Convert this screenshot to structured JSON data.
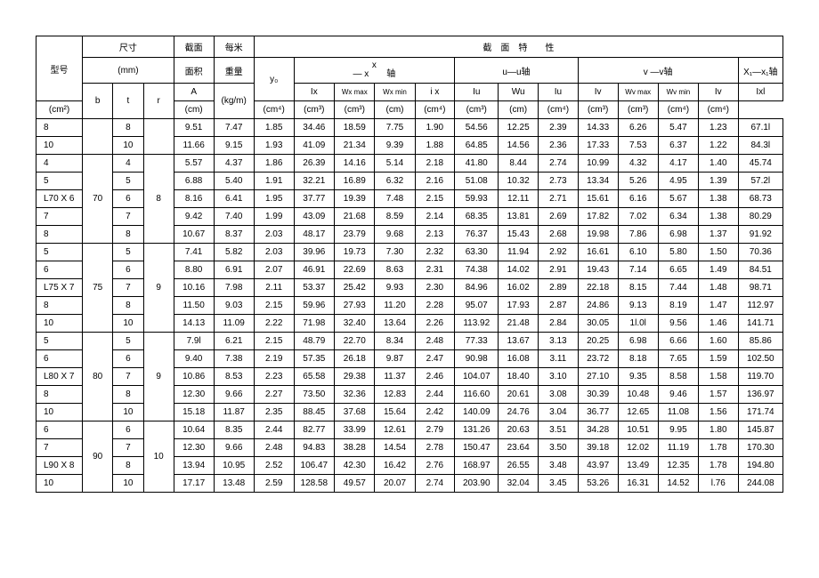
{
  "header": {
    "model": "型号",
    "dim": "尺寸",
    "dim_unit": "(mm)",
    "b": "b",
    "t": "t",
    "r": "r",
    "area": "截面",
    "area2": "面积",
    "A": "A",
    "A_unit": "(cm²)",
    "wpm": "每米",
    "wpm2": "重量",
    "wpm_unit": "(kg/m)",
    "props": "截　面　特　　性",
    "y0": "y₀",
    "y0_unit": "(cm)",
    "x_axis_top": "x",
    "x_axis_bot": "— x　　轴",
    "Ix": "Ix",
    "Ix_unit": "(cm⁴)",
    "Wxmax": "Wx max",
    "Wxmax_unit": "(cm³)",
    "Wxmin": "Wx min",
    "Wxmin_unit": "(cm³)",
    "ix": "i x",
    "ix_unit": "(cm)",
    "u_axis": "u—u轴",
    "Iu": "Iu",
    "Iu_unit": "(cm⁴)",
    "Wu": "Wu",
    "Wu_unit": "(cm³)",
    "iu": "Iu",
    "iu_unit": "(cm)",
    "v_axis": "v —v轴",
    "Iv": "Iv",
    "Iv_unit": "(cm⁴)",
    "Wvmax": "Wv max",
    "Wvmax_unit": "(cm³)",
    "Wvmin": "Wv min",
    "Wvmin_unit": "(cm³)",
    "iv": "Iv",
    "iv_unit": "(cm⁴)",
    "x1_axis": "X₁—x₁轴",
    "Ixl": "Ixl",
    "Ixl_unit": "(cm⁴)"
  },
  "groups": [
    {
      "b": "",
      "r": "",
      "rows": [
        {
          "model": "8",
          "t": "8",
          "A": "9.51",
          "kg": "7.47",
          "y0": "1.85",
          "Ix": "34.46",
          "Wxmax": "18.59",
          "Wxmin": "7.75",
          "ix": "1.90",
          "Iu": "54.56",
          "Wu": "12.25",
          "iu": "2.39",
          "Iv": "14.33",
          "Wvmax": "6.26",
          "Wvmin": "5.47",
          "iv": "1.23",
          "Ixl": "67.1l"
        },
        {
          "model": "10",
          "t": "10",
          "A": "11.66",
          "kg": "9.15",
          "y0": "1.93",
          "Ix": "41.09",
          "Wxmax": "21.34",
          "Wxmin": "9.39",
          "ix": "1.88",
          "Iu": "64.85",
          "Wu": "14.56",
          "iu": "2.36",
          "Iv": "17.33",
          "Wvmax": "7.53",
          "Wvmin": "6.37",
          "iv": "1.22",
          "Ixl": "84.3l"
        }
      ]
    },
    {
      "b": "70",
      "r": "8",
      "rows": [
        {
          "model": "4",
          "t": "4",
          "A": "5.57",
          "kg": "4.37",
          "y0": "1.86",
          "Ix": "26.39",
          "Wxmax": "14.16",
          "Wxmin": "5.14",
          "ix": "2.18",
          "Iu": "41.80",
          "Wu": "8.44",
          "iu": "2.74",
          "Iv": "10.99",
          "Wvmax": "4.32",
          "Wvmin": "4.17",
          "iv": "1.40",
          "Ixl": "45.74"
        },
        {
          "model": "5",
          "t": "5",
          "A": "6.88",
          "kg": "5.40",
          "y0": "1.91",
          "Ix": "32.21",
          "Wxmax": "16.89",
          "Wxmin": "6.32",
          "ix": "2.16",
          "Iu": "51.08",
          "Wu": "10.32",
          "iu": "2.73",
          "Iv": "13.34",
          "Wvmax": "5.26",
          "Wvmin": "4.95",
          "iv": "1.39",
          "Ixl": "57.2l"
        },
        {
          "model": "L70 X 6",
          "t": "6",
          "A": "8.16",
          "kg": "6.41",
          "y0": "1.95",
          "Ix": "37.77",
          "Wxmax": "19.39",
          "Wxmin": "7.48",
          "ix": "2.15",
          "Iu": "59.93",
          "Wu": "12.11",
          "iu": "2.71",
          "Iv": "15.61",
          "Wvmax": "6.16",
          "Wvmin": "5.67",
          "iv": "1.38",
          "Ixl": "68.73"
        },
        {
          "model": "7",
          "t": "7",
          "A": "9.42",
          "kg": "7.40",
          "y0": "1.99",
          "Ix": "43.09",
          "Wxmax": "21.68",
          "Wxmin": "8.59",
          "ix": "2.14",
          "Iu": "68.35",
          "Wu": "13.81",
          "iu": "2.69",
          "Iv": "17.82",
          "Wvmax": "7.02",
          "Wvmin": "6.34",
          "iv": "1.38",
          "Ixl": "80.29"
        },
        {
          "model": "8",
          "t": "8",
          "A": "10.67",
          "kg": "8.37",
          "y0": "2.03",
          "Ix": "48.17",
          "Wxmax": "23.79",
          "Wxmin": "9.68",
          "ix": "2.13",
          "Iu": "76.37",
          "Wu": "15.43",
          "iu": "2.68",
          "Iv": "19.98",
          "Wvmax": "7.86",
          "Wvmin": "6.98",
          "iv": "1.37",
          "Ixl": "91.92"
        }
      ]
    },
    {
      "b": "75",
      "r": "9",
      "rows": [
        {
          "model": "5",
          "t": "5",
          "A": "7.41",
          "kg": "5.82",
          "y0": "2.03",
          "Ix": "39.96",
          "Wxmax": "19.73",
          "Wxmin": "7.30",
          "ix": "2.32",
          "Iu": "63.30",
          "Wu": "11.94",
          "iu": "2.92",
          "Iv": "16.61",
          "Wvmax": "6.10",
          "Wvmin": "5.80",
          "iv": "1.50",
          "Ixl": "70.36"
        },
        {
          "model": "6",
          "t": "6",
          "A": "8.80",
          "kg": "6.91",
          "y0": "2.07",
          "Ix": "46.91",
          "Wxmax": "22.69",
          "Wxmin": "8.63",
          "ix": "2.31",
          "Iu": "74.38",
          "Wu": "14.02",
          "iu": "2.91",
          "Iv": "19.43",
          "Wvmax": "7.14",
          "Wvmin": "6.65",
          "iv": "1.49",
          "Ixl": "84.51"
        },
        {
          "model": "L75 X 7",
          "t": "7",
          "A": "10.16",
          "kg": "7.98",
          "y0": "2.11",
          "Ix": "53.37",
          "Wxmax": "25.42",
          "Wxmin": "9.93",
          "ix": "2.30",
          "Iu": "84.96",
          "Wu": "16.02",
          "iu": "2.89",
          "Iv": "22.18",
          "Wvmax": "8.15",
          "Wvmin": "7.44",
          "iv": "1.48",
          "Ixl": "98.71"
        },
        {
          "model": "8",
          "t": "8",
          "A": "11.50",
          "kg": "9.03",
          "y0": "2.15",
          "Ix": "59.96",
          "Wxmax": "27.93",
          "Wxmin": "11.20",
          "ix": "2.28",
          "Iu": "95.07",
          "Wu": "17.93",
          "iu": "2.87",
          "Iv": "24.86",
          "Wvmax": "9.13",
          "Wvmin": "8.19",
          "iv": "1.47",
          "Ixl": "112.97"
        },
        {
          "model": "10",
          "t": "10",
          "A": "14.13",
          "kg": "11.09",
          "y0": "2.22",
          "Ix": "71.98",
          "Wxmax": "32.40",
          "Wxmin": "13.64",
          "ix": "2.26",
          "Iu": "113.92",
          "Wu": "21.48",
          "iu": "2.84",
          "Iv": "30.05",
          "Wvmax": "1l.0l",
          "Wvmin": "9.56",
          "iv": "1.46",
          "Ixl": "141.71"
        }
      ]
    },
    {
      "b": "80",
      "r": "9",
      "rows": [
        {
          "model": "5",
          "t": "5",
          "A": "7.9l",
          "kg": "6.21",
          "y0": "2.15",
          "Ix": "48.79",
          "Wxmax": "22.70",
          "Wxmin": "8.34",
          "ix": "2.48",
          "Iu": "77.33",
          "Wu": "13.67",
          "iu": "3.13",
          "Iv": "20.25",
          "Wvmax": "6.98",
          "Wvmin": "6.66",
          "iv": "1.60",
          "Ixl": "85.86"
        },
        {
          "model": "6",
          "t": "6",
          "A": "9.40",
          "kg": "7.38",
          "y0": "2.19",
          "Ix": "57.35",
          "Wxmax": "26.18",
          "Wxmin": "9.87",
          "ix": "2.47",
          "Iu": "90.98",
          "Wu": "16.08",
          "iu": "3.11",
          "Iv": "23.72",
          "Wvmax": "8.18",
          "Wvmin": "7.65",
          "iv": "1.59",
          "Ixl": "102.50"
        },
        {
          "model": "L80 X 7",
          "t": "7",
          "A": "10.86",
          "kg": "8.53",
          "y0": "2.23",
          "Ix": "65.58",
          "Wxmax": "29.38",
          "Wxmin": "11.37",
          "ix": "2.46",
          "Iu": "104.07",
          "Wu": "18.40",
          "iu": "3.10",
          "Iv": "27.10",
          "Wvmax": "9.35",
          "Wvmin": "8.58",
          "iv": "1.58",
          "Ixl": "119.70"
        },
        {
          "model": "8",
          "t": "8",
          "A": "12.30",
          "kg": "9.66",
          "y0": "2.27",
          "Ix": "73.50",
          "Wxmax": "32.36",
          "Wxmin": "12.83",
          "ix": "2.44",
          "Iu": "116.60",
          "Wu": "20.61",
          "iu": "3.08",
          "Iv": "30.39",
          "Wvmax": "10.48",
          "Wvmin": "9.46",
          "iv": "1.57",
          "Ixl": "136.97"
        },
        {
          "model": "10",
          "t": "10",
          "A": "15.18",
          "kg": "11.87",
          "y0": "2.35",
          "Ix": "88.45",
          "Wxmax": "37.68",
          "Wxmin": "15.64",
          "ix": "2.42",
          "Iu": "140.09",
          "Wu": "24.76",
          "iu": "3.04",
          "Iv": "36.77",
          "Wvmax": "12.65",
          "Wvmin": "11.08",
          "iv": "1.56",
          "Ixl": "171.74"
        }
      ]
    },
    {
      "b": "90",
      "r": "10",
      "rows": [
        {
          "model": "6",
          "t": "6",
          "A": "10.64",
          "kg": "8.35",
          "y0": "2.44",
          "Ix": "82.77",
          "Wxmax": "33.99",
          "Wxmin": "12.61",
          "ix": "2.79",
          "Iu": "131.26",
          "Wu": "20.63",
          "iu": "3.51",
          "Iv": "34.28",
          "Wvmax": "10.51",
          "Wvmin": "9.95",
          "iv": "1.80",
          "Ixl": "145.87"
        },
        {
          "model": "7",
          "t": "7",
          "A": "12.30",
          "kg": "9.66",
          "y0": "2.48",
          "Ix": "94.83",
          "Wxmax": "38.28",
          "Wxmin": "14.54",
          "ix": "2.78",
          "Iu": "150.47",
          "Wu": "23.64",
          "iu": "3.50",
          "Iv": "39.18",
          "Wvmax": "12.02",
          "Wvmin": "11.19",
          "iv": "1.78",
          "Ixl": "170.30"
        },
        {
          "model": "L90 X 8",
          "t": "8",
          "A": "13.94",
          "kg": "10.95",
          "y0": "2.52",
          "Ix": "106.47",
          "Wxmax": "42.30",
          "Wxmin": "16.42",
          "ix": "2.76",
          "Iu": "168.97",
          "Wu": "26.55",
          "iu": "3.48",
          "Iv": "43.97",
          "Wvmax": "13.49",
          "Wvmin": "12.35",
          "iv": "1.78",
          "Ixl": "194.80"
        },
        {
          "model": "10",
          "t": "10",
          "A": "17.17",
          "kg": "13.48",
          "y0": "2.59",
          "Ix": "128.58",
          "Wxmax": "49.57",
          "Wxmin": "20.07",
          "ix": "2.74",
          "Iu": "203.90",
          "Wu": "32.04",
          "iu": "3.45",
          "Iv": "53.26",
          "Wvmax": "16.31",
          "Wvmin": "14.52",
          "iv": "l.76",
          "Ixl": "244.08"
        }
      ]
    }
  ]
}
